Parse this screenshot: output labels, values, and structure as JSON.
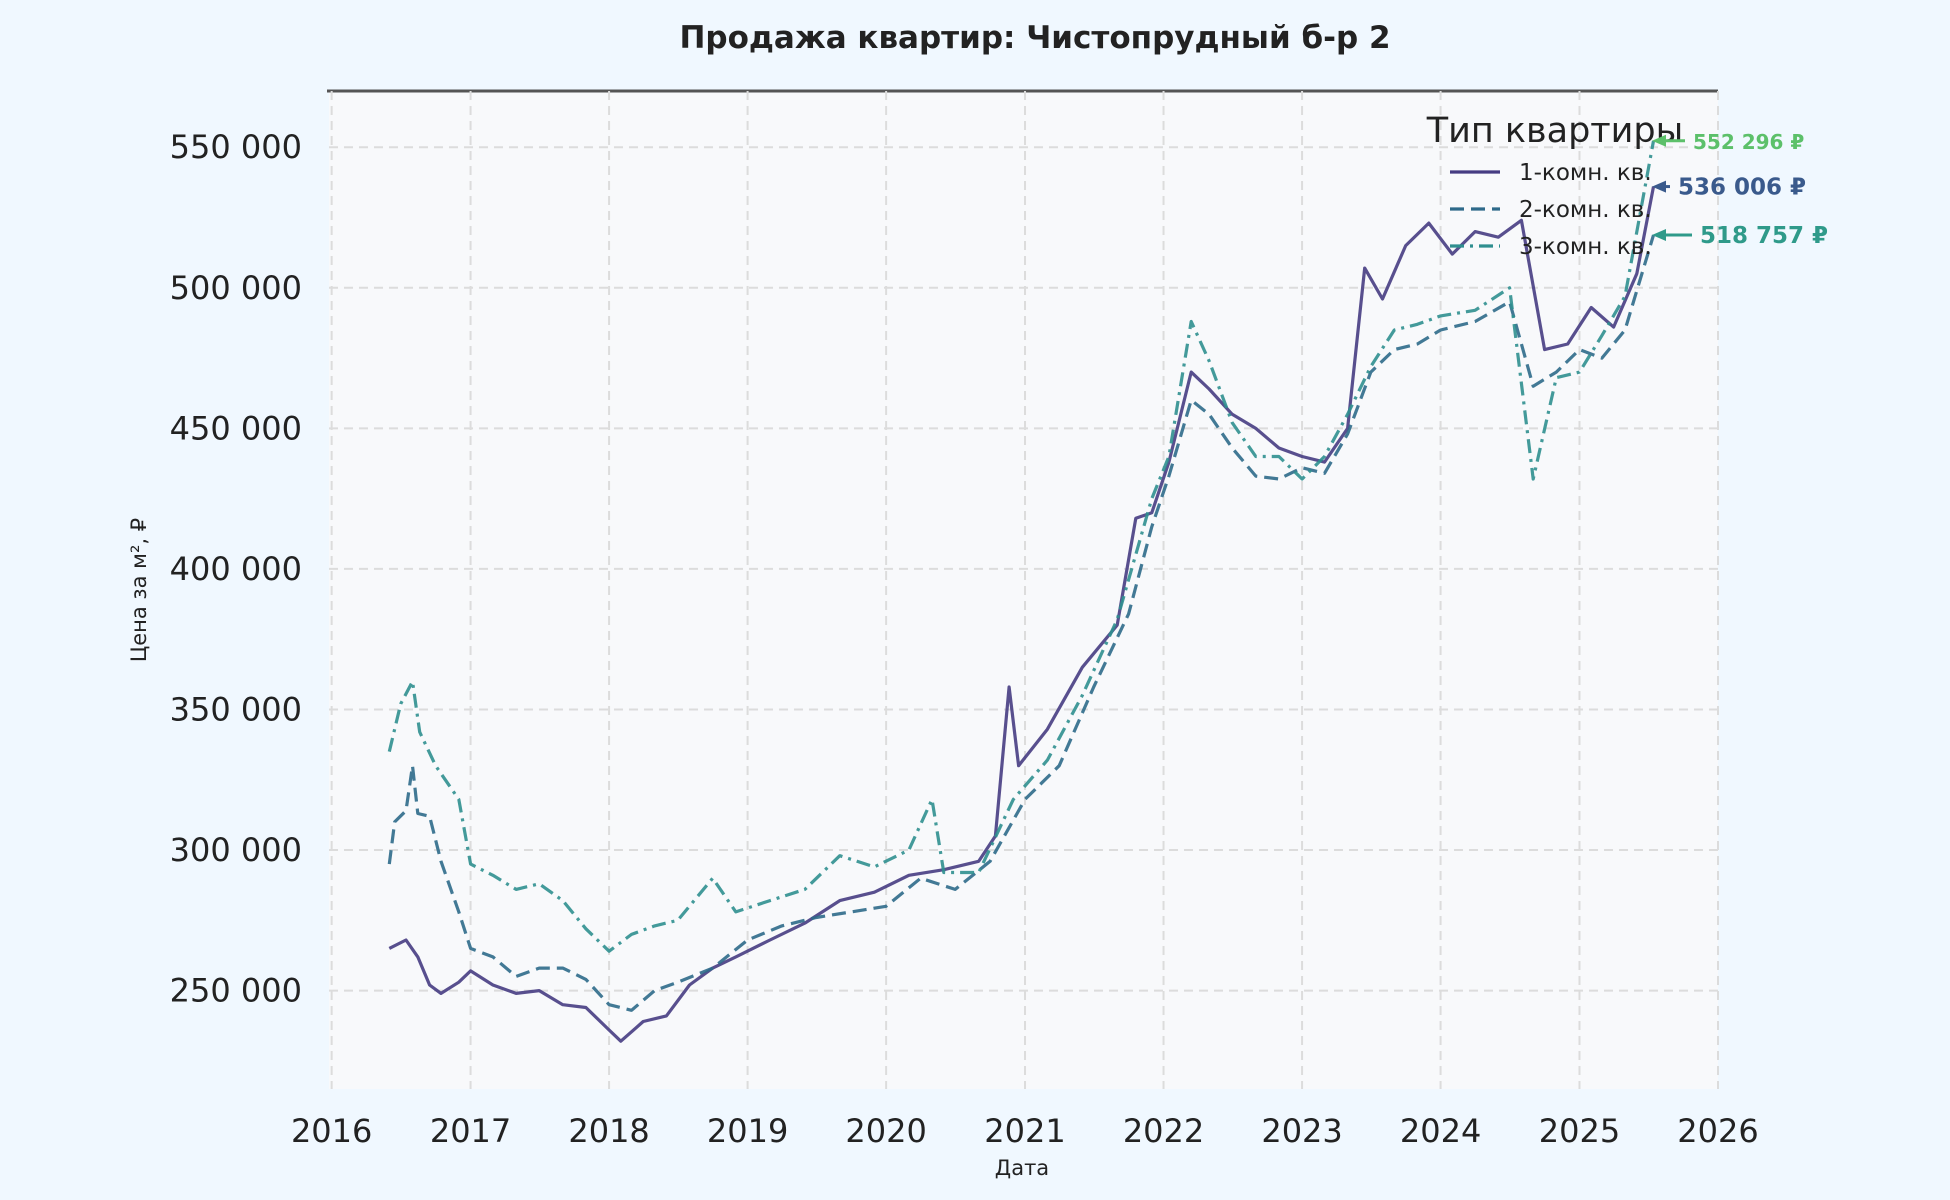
{
  "chart_data": {
    "type": "line",
    "title": "Продажа квартир: Чистопрудный б-р 2",
    "xlabel": "Дата",
    "ylabel": "Цена за м², ₽",
    "x_ticks": [
      "2016",
      "2017",
      "2018",
      "2019",
      "2020",
      "2021",
      "2022",
      "2023",
      "2024",
      "2025",
      "2026"
    ],
    "y_ticks": [
      "250 000",
      "300 000",
      "350 000",
      "400 000",
      "450 000",
      "500 000",
      "550 000"
    ],
    "y_tick_values": [
      250000,
      300000,
      350000,
      400000,
      450000,
      500000,
      550000
    ],
    "xlim": [
      "2015-12-25",
      "2026-01-01"
    ],
    "ylim": [
      215000,
      570000
    ],
    "grid": true,
    "legend": {
      "title": "Тип квартиры",
      "placement": "top-right"
    },
    "series": [
      {
        "name": "1-комн. кв.",
        "color": "#463c82",
        "dash": "solid",
        "points": [
          [
            "2016-06-01",
            265000
          ],
          [
            "2016-07-15",
            268000
          ],
          [
            "2016-08-15",
            262000
          ],
          [
            "2016-09-15",
            252000
          ],
          [
            "2016-10-15",
            249000
          ],
          [
            "2016-12-01",
            253000
          ],
          [
            "2017-01-01",
            257000
          ],
          [
            "2017-03-01",
            252000
          ],
          [
            "2017-05-01",
            249000
          ],
          [
            "2017-07-01",
            250000
          ],
          [
            "2017-09-01",
            245000
          ],
          [
            "2017-11-01",
            244000
          ],
          [
            "2018-01-01",
            236000
          ],
          [
            "2018-02-01",
            232000
          ],
          [
            "2018-04-01",
            239000
          ],
          [
            "2018-06-01",
            241000
          ],
          [
            "2018-08-01",
            252000
          ],
          [
            "2018-10-01",
            258000
          ],
          [
            "2018-12-01",
            262000
          ],
          [
            "2019-03-01",
            268000
          ],
          [
            "2019-06-01",
            274000
          ],
          [
            "2019-09-01",
            282000
          ],
          [
            "2019-12-01",
            285000
          ],
          [
            "2020-03-01",
            291000
          ],
          [
            "2020-06-01",
            293000
          ],
          [
            "2020-09-01",
            296000
          ],
          [
            "2020-10-15",
            305000
          ],
          [
            "2020-11-20",
            358000
          ],
          [
            "2020-12-15",
            330000
          ],
          [
            "2021-03-01",
            343000
          ],
          [
            "2021-06-01",
            365000
          ],
          [
            "2021-09-01",
            380000
          ],
          [
            "2021-10-20",
            418000
          ],
          [
            "2021-12-01",
            420000
          ],
          [
            "2022-01-15",
            438000
          ],
          [
            "2022-03-15",
            470000
          ],
          [
            "2022-05-01",
            464000
          ],
          [
            "2022-07-01",
            455000
          ],
          [
            "2022-09-01",
            450000
          ],
          [
            "2022-11-01",
            443000
          ],
          [
            "2023-01-01",
            440000
          ],
          [
            "2023-03-01",
            438000
          ],
          [
            "2023-05-01",
            450000
          ],
          [
            "2023-06-15",
            507000
          ],
          [
            "2023-08-01",
            496000
          ],
          [
            "2023-10-01",
            515000
          ],
          [
            "2023-12-01",
            523000
          ],
          [
            "2024-02-01",
            512000
          ],
          [
            "2024-04-01",
            520000
          ],
          [
            "2024-06-01",
            518000
          ],
          [
            "2024-08-01",
            524000
          ],
          [
            "2024-10-01",
            478000
          ],
          [
            "2024-12-01",
            480000
          ],
          [
            "2025-02-01",
            493000
          ],
          [
            "2025-04-01",
            486000
          ],
          [
            "2025-06-01",
            505000
          ],
          [
            "2025-07-15",
            536006
          ]
        ]
      },
      {
        "name": "2-комн. кв.",
        "color": "#2e6a8a",
        "dash": "dashed",
        "points": [
          [
            "2016-06-01",
            295000
          ],
          [
            "2016-06-15",
            310000
          ],
          [
            "2016-07-15",
            314000
          ],
          [
            "2016-08-01",
            330000
          ],
          [
            "2016-08-15",
            313000
          ],
          [
            "2016-09-15",
            312000
          ],
          [
            "2016-10-15",
            296000
          ],
          [
            "2016-12-01",
            278000
          ],
          [
            "2017-01-01",
            265000
          ],
          [
            "2017-03-01",
            262000
          ],
          [
            "2017-05-01",
            255000
          ],
          [
            "2017-07-01",
            258000
          ],
          [
            "2017-09-01",
            258000
          ],
          [
            "2017-11-01",
            254000
          ],
          [
            "2018-01-01",
            245000
          ],
          [
            "2018-03-01",
            243000
          ],
          [
            "2018-05-01",
            250000
          ],
          [
            "2018-07-01",
            253000
          ],
          [
            "2018-10-01",
            258000
          ],
          [
            "2019-01-01",
            268000
          ],
          [
            "2019-04-01",
            273000
          ],
          [
            "2019-07-01",
            276000
          ],
          [
            "2019-10-01",
            278000
          ],
          [
            "2020-01-01",
            280000
          ],
          [
            "2020-04-01",
            290000
          ],
          [
            "2020-07-01",
            286000
          ],
          [
            "2020-10-01",
            296000
          ],
          [
            "2021-01-01",
            318000
          ],
          [
            "2021-04-01",
            330000
          ],
          [
            "2021-07-01",
            358000
          ],
          [
            "2021-10-01",
            384000
          ],
          [
            "2021-12-01",
            415000
          ],
          [
            "2022-01-15",
            433000
          ],
          [
            "2022-03-15",
            460000
          ],
          [
            "2022-05-01",
            455000
          ],
          [
            "2022-07-01",
            443000
          ],
          [
            "2022-09-01",
            433000
          ],
          [
            "2022-11-01",
            432000
          ],
          [
            "2023-01-01",
            436000
          ],
          [
            "2023-03-01",
            434000
          ],
          [
            "2023-05-01",
            448000
          ],
          [
            "2023-07-01",
            470000
          ],
          [
            "2023-09-01",
            478000
          ],
          [
            "2023-11-01",
            480000
          ],
          [
            "2024-01-01",
            485000
          ],
          [
            "2024-04-01",
            488000
          ],
          [
            "2024-07-01",
            495000
          ],
          [
            "2024-09-01",
            465000
          ],
          [
            "2024-11-01",
            470000
          ],
          [
            "2025-01-01",
            478000
          ],
          [
            "2025-03-01",
            475000
          ],
          [
            "2025-05-01",
            485000
          ],
          [
            "2025-07-15",
            518757
          ]
        ]
      },
      {
        "name": "3-комн. кв.",
        "color": "#2f8f8f",
        "dash": "dashdot",
        "points": [
          [
            "2016-06-01",
            335000
          ],
          [
            "2016-07-01",
            352000
          ],
          [
            "2016-08-01",
            360000
          ],
          [
            "2016-08-20",
            342000
          ],
          [
            "2016-10-01",
            330000
          ],
          [
            "2016-12-01",
            318000
          ],
          [
            "2017-01-01",
            295000
          ],
          [
            "2017-03-01",
            291000
          ],
          [
            "2017-05-01",
            286000
          ],
          [
            "2017-07-01",
            288000
          ],
          [
            "2017-09-01",
            282000
          ],
          [
            "2017-11-01",
            272000
          ],
          [
            "2018-01-01",
            264000
          ],
          [
            "2018-03-01",
            270000
          ],
          [
            "2018-05-01",
            273000
          ],
          [
            "2018-07-01",
            275000
          ],
          [
            "2018-10-01",
            290000
          ],
          [
            "2018-12-01",
            278000
          ],
          [
            "2019-03-01",
            282000
          ],
          [
            "2019-06-01",
            286000
          ],
          [
            "2019-09-01",
            298000
          ],
          [
            "2019-12-01",
            294000
          ],
          [
            "2020-03-01",
            300000
          ],
          [
            "2020-05-01",
            318000
          ],
          [
            "2020-06-01",
            292000
          ],
          [
            "2020-09-01",
            292000
          ],
          [
            "2020-12-01",
            318000
          ],
          [
            "2021-03-01",
            332000
          ],
          [
            "2021-06-01",
            355000
          ],
          [
            "2021-09-01",
            382000
          ],
          [
            "2021-12-01",
            425000
          ],
          [
            "2022-01-15",
            440000
          ],
          [
            "2022-03-15",
            488000
          ],
          [
            "2022-05-01",
            474000
          ],
          [
            "2022-07-01",
            452000
          ],
          [
            "2022-09-01",
            440000
          ],
          [
            "2022-11-01",
            440000
          ],
          [
            "2023-01-01",
            432000
          ],
          [
            "2023-03-01",
            440000
          ],
          [
            "2023-05-01",
            455000
          ],
          [
            "2023-07-01",
            472000
          ],
          [
            "2023-09-01",
            485000
          ],
          [
            "2023-11-01",
            487000
          ],
          [
            "2024-01-01",
            490000
          ],
          [
            "2024-04-01",
            492000
          ],
          [
            "2024-07-01",
            500000
          ],
          [
            "2024-09-01",
            432000
          ],
          [
            "2024-11-01",
            468000
          ],
          [
            "2025-01-01",
            470000
          ],
          [
            "2025-03-01",
            483000
          ],
          [
            "2025-05-01",
            497000
          ],
          [
            "2025-07-15",
            552296
          ]
        ]
      }
    ],
    "annotations": [
      {
        "text": "552 296 ₽",
        "color": "#5cc06a",
        "value": 552296
      },
      {
        "text": "536 006 ₽",
        "color": "#3a5a8c",
        "value": 536006
      },
      {
        "text": "518 757 ₽",
        "color": "#2f9a8a",
        "value": 518757
      }
    ]
  }
}
